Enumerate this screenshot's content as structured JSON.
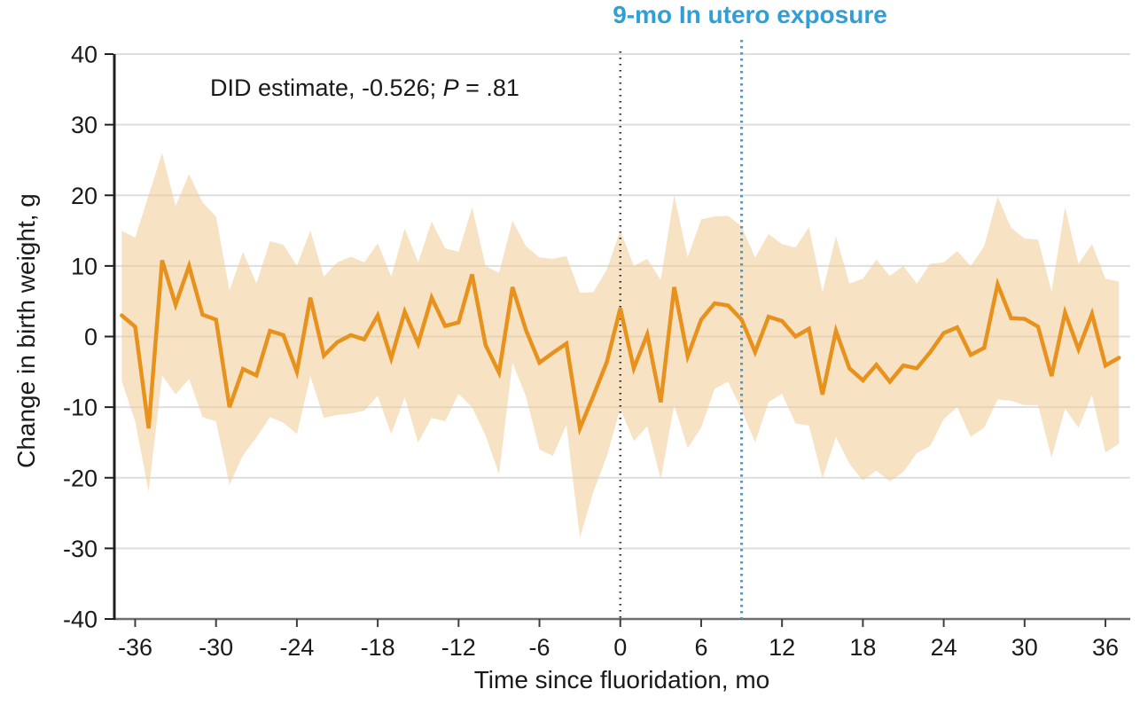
{
  "figure": {
    "exposure_annotation": "9-mo In utero exposure",
    "did_annotation": {
      "prefix": "DID estimate, -0.526; ",
      "p_symbol": "P",
      "p_value": " = .81"
    }
  },
  "axes": {
    "x_label": "Time since fluoridation, mo",
    "y_label": "Change in birth weight, g",
    "x_ticks": [
      -36,
      -30,
      -24,
      -18,
      -12,
      -6,
      0,
      6,
      12,
      18,
      24,
      30,
      36
    ],
    "y_ticks": [
      40,
      30,
      20,
      10,
      0,
      -10,
      -20,
      -30,
      -40
    ]
  },
  "chart_data": {
    "type": "line",
    "title": "",
    "xlabel": "Time since fluoridation, mo",
    "ylabel": "Change in birth weight, g",
    "xlim": [
      -37.61,
      37.84
    ],
    "ylim": [
      -40,
      40
    ],
    "grid": true,
    "legend": "none",
    "annotation": "DID estimate, -0.526; P = .81",
    "x": [
      -37,
      -36,
      -35,
      -34,
      -33,
      -32,
      -31,
      -30,
      -29,
      -28,
      -27,
      -26,
      -25,
      -24,
      -23,
      -22,
      -21,
      -20,
      -19,
      -18,
      -17,
      -16,
      -15,
      -14,
      -13,
      -12,
      -11,
      -10,
      -9,
      -8,
      -7,
      -6,
      -5,
      -4,
      -3,
      -2,
      -1,
      0,
      1,
      2,
      3,
      4,
      5,
      6,
      7,
      8,
      9,
      10,
      11,
      12,
      13,
      14,
      15,
      16,
      17,
      18,
      19,
      20,
      21,
      22,
      23,
      24,
      25,
      26,
      27,
      28,
      29,
      30,
      31,
      32,
      33,
      34,
      35,
      36,
      37
    ],
    "series": [
      {
        "name": "DID estimate",
        "values": [
          3,
          1.4,
          -13,
          10.8,
          4.5,
          10,
          3.1,
          2.4,
          -10,
          -4.6,
          -5.5,
          0.8,
          0.2,
          -5,
          5.5,
          -2.7,
          -0.8,
          0.2,
          -0.4,
          3,
          -3.1,
          3.5,
          -1,
          5.5,
          1.5,
          2,
          8.8,
          -1.2,
          -5.1,
          7,
          0.9,
          -3.7,
          -2.3,
          -1,
          -13,
          -8.4,
          -3.6,
          4,
          -4.5,
          0.3,
          -9.3,
          7,
          -2.8,
          2.4,
          4.7,
          4.4,
          2.4,
          -2.2,
          2.8,
          2.2,
          0,
          1.1,
          -8.2,
          0.8,
          -4.5,
          -6.2,
          -4,
          -6.4,
          -4.1,
          -4.5,
          -2.2,
          0.5,
          1.3,
          -2.6,
          -1.6,
          7.4,
          2.6,
          2.5,
          1.4,
          -5.6,
          3.4,
          -1.8,
          3.2,
          -4.1,
          -3
        ]
      },
      {
        "name": "CI upper",
        "values": [
          15,
          14,
          20,
          26,
          18.5,
          23,
          19,
          17,
          6.5,
          12,
          7.5,
          13.5,
          13,
          10,
          15,
          8.5,
          10.5,
          11.3,
          10.5,
          13.2,
          8.5,
          15.3,
          10.5,
          16.3,
          12.5,
          12,
          18.3,
          10,
          9,
          16.4,
          12.8,
          11.2,
          11,
          11.4,
          6.2,
          6.3,
          9.5,
          15,
          10,
          11,
          8,
          20,
          11.2,
          16.6,
          17,
          17.1,
          15.6,
          11.2,
          14.5,
          13.1,
          12.6,
          15.5,
          6.3,
          14.2,
          7.5,
          8.2,
          10.9,
          8.6,
          10,
          7.5,
          10.3,
          10.5,
          12.1,
          10,
          12.8,
          19.8,
          15.4,
          13.9,
          13.7,
          6.4,
          18.3,
          10.3,
          13.1,
          8.2,
          7.8
        ]
      },
      {
        "name": "CI lower",
        "values": [
          -6.3,
          -12,
          -22,
          -5.5,
          -8.2,
          -6,
          -11.4,
          -12,
          -21,
          -16.8,
          -14.3,
          -11.4,
          -12.2,
          -13.8,
          -5.6,
          -11.5,
          -11.1,
          -10.9,
          -10.5,
          -8.4,
          -13.8,
          -8.6,
          -15,
          -11.5,
          -12,
          -8.1,
          -10,
          -14,
          -19.5,
          -3.7,
          -8.5,
          -16,
          -16.9,
          -12.5,
          -28.5,
          -22,
          -16.9,
          -10.2,
          -14.8,
          -12.7,
          -20.2,
          -9.7,
          -15.8,
          -12.9,
          -7.4,
          -6.4,
          -10.4,
          -15,
          -9.3,
          -8.1,
          -12.3,
          -12.6,
          -20.1,
          -14.2,
          -18,
          -20.4,
          -19,
          -20.5,
          -19.2,
          -16.5,
          -15.5,
          -11.7,
          -10,
          -14.2,
          -12.9,
          -8.9,
          -9.1,
          -9.7,
          -9.7,
          -17.1,
          -10.2,
          -12.9,
          -8.3,
          -16.4,
          -15.2
        ]
      }
    ],
    "reference_lines": [
      {
        "x": 0,
        "style": "dotted",
        "color": "#2f2b28",
        "label": ""
      },
      {
        "x": 9,
        "style": "dotted",
        "color": "#399fd5",
        "label": "9-mo In utero exposure"
      }
    ],
    "colors": {
      "line": "#e8921e",
      "band": "#f1cb94",
      "reference_black": "#2f2b28",
      "reference_blue": "#399fd5",
      "title_blue": "#2f9fd6",
      "grid": "#dedede",
      "y_axis": "#1f1f1f",
      "x_axis": "#6e6e6e",
      "text": "#1a1a1a"
    }
  }
}
